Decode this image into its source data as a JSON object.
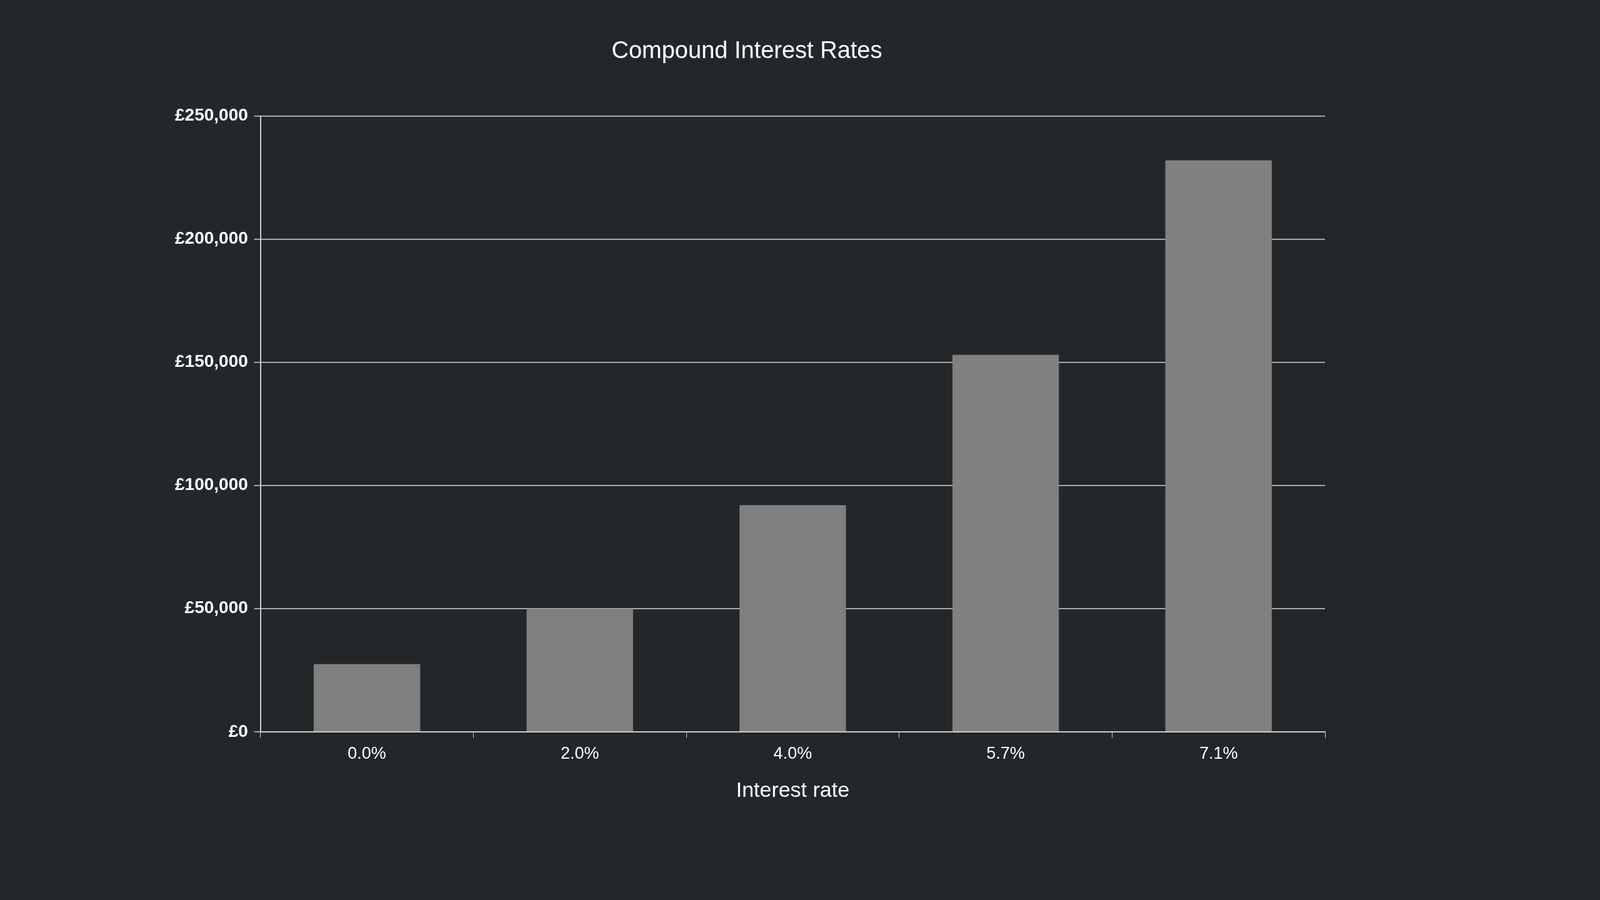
{
  "chart_data": {
    "type": "bar",
    "title": "Compound Interest Rates",
    "x_label": "Interest rate",
    "categories": [
      "0.0%",
      "2.0%",
      "4.0%",
      "5.7%",
      "7.1%"
    ],
    "values": [
      27500,
      50000,
      92000,
      153000,
      232000
    ],
    "color": "#808080",
    "ylim": [
      0,
      250000
    ],
    "yticks": [
      {
        "value": 0,
        "label": "£0"
      },
      {
        "value": 50000,
        "label": "£50,000"
      },
      {
        "value": 100000,
        "label": "£100,000"
      },
      {
        "value": 150000,
        "label": "£150,000"
      },
      {
        "value": 200000,
        "label": "£200,000"
      },
      {
        "value": 250000,
        "label": "£250,000"
      }
    ],
    "grid": true
  }
}
